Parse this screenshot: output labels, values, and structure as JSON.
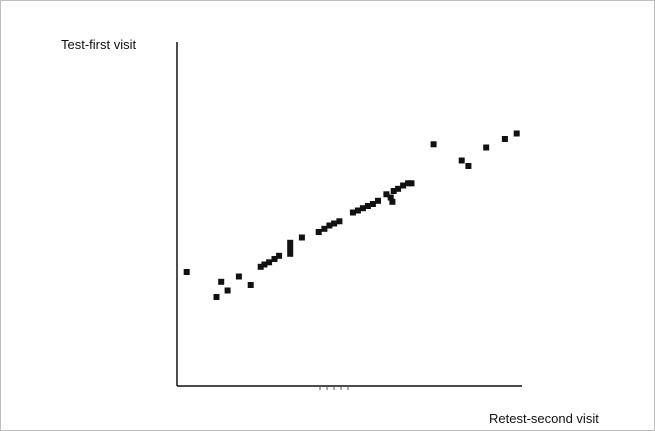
{
  "chart_data": {
    "type": "scatter",
    "title": "",
    "xlabel": "Retest-second visit",
    "ylabel": "Test-first visit",
    "grid": false,
    "legend": "none",
    "colors": {
      "marker": "#111111",
      "axis": "#111111",
      "frame": "#bdbdbd"
    },
    "xlim": [
      0,
      100
    ],
    "ylim": [
      0,
      100
    ],
    "series": [
      {
        "points": [
          [
            1.4,
            31.2
          ],
          [
            10.3,
            21.2
          ],
          [
            11.7,
            27.3
          ],
          [
            13.6,
            23.8
          ],
          [
            17.0,
            29.4
          ],
          [
            20.5,
            26.0
          ],
          [
            23.5,
            33.3
          ],
          [
            24.6,
            34.2
          ],
          [
            26.0,
            35.1
          ],
          [
            27.6,
            36.4
          ],
          [
            29.0,
            37.7
          ],
          [
            32.3,
            38.5
          ],
          [
            32.3,
            40.7
          ],
          [
            32.3,
            42.9
          ],
          [
            35.8,
            45.0
          ],
          [
            40.8,
            47.2
          ],
          [
            42.5,
            48.5
          ],
          [
            44.0,
            49.8
          ],
          [
            45.4,
            50.6
          ],
          [
            47.0,
            51.5
          ],
          [
            51.0,
            55.0
          ],
          [
            52.5,
            55.8
          ],
          [
            54.0,
            56.7
          ],
          [
            55.5,
            57.6
          ],
          [
            57.0,
            58.4
          ],
          [
            58.5,
            59.7
          ],
          [
            61.0,
            62.3
          ],
          [
            62.3,
            61.0
          ],
          [
            63.2,
            63.6
          ],
          [
            64.5,
            64.5
          ],
          [
            66.0,
            65.8
          ],
          [
            67.5,
            66.7
          ],
          [
            68.5,
            66.7
          ],
          [
            62.8,
            59.3
          ],
          [
            75.1,
            82.3
          ],
          [
            83.5,
            75.8
          ],
          [
            85.5,
            73.6
          ],
          [
            90.8,
            81.0
          ],
          [
            96.4,
            84.4
          ],
          [
            99.9,
            86.6
          ]
        ]
      }
    ]
  }
}
